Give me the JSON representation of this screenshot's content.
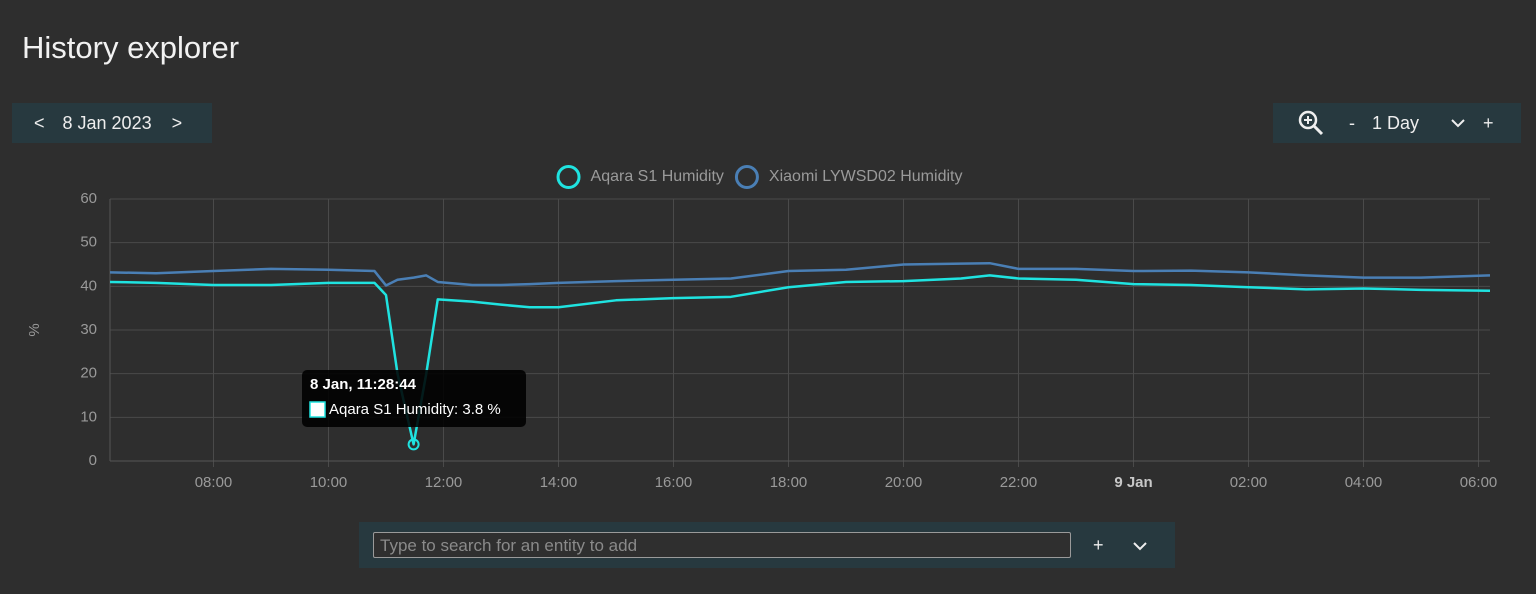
{
  "ui": {
    "title": "History explorer",
    "date_nav": {
      "prev": "<",
      "date": "8 Jan 2023",
      "next": ">"
    },
    "zoom": {
      "minus": "-",
      "range": "1 Day",
      "plus": "+"
    },
    "search": {
      "placeholder": "Type to search for an entity to add",
      "add": "+"
    }
  },
  "chart_data": {
    "type": "line",
    "ylabel": "%",
    "x": [
      6.2,
      7,
      8,
      9,
      10,
      10.8,
      11,
      11.2,
      11.48,
      11.7,
      11.9,
      12.5,
      13,
      13.5,
      14,
      15,
      16,
      17,
      18,
      19,
      20,
      21,
      21.5,
      22,
      23,
      24,
      25,
      26,
      27,
      28,
      29,
      30.2
    ],
    "series": [
      {
        "name": "Aqara S1 Humidity",
        "color": "#1fe3e0",
        "values": [
          41,
          40.8,
          40.3,
          40.3,
          40.8,
          40.8,
          38,
          20,
          3.8,
          20,
          37,
          36.5,
          35.8,
          35.2,
          35.2,
          36.8,
          37.3,
          37.6,
          39.8,
          41,
          41.2,
          41.8,
          42.5,
          41.8,
          41.5,
          40.5,
          40.3,
          39.8,
          39.3,
          39.5,
          39.2,
          39
        ]
      },
      {
        "name": "Xiaomi LYWSD02 Humidity",
        "color": "#4a7fb5",
        "values": [
          43.2,
          43,
          43.5,
          44,
          43.8,
          43.5,
          40.2,
          41.5,
          42,
          42.5,
          41,
          40.3,
          40.3,
          40.5,
          40.8,
          41.2,
          41.5,
          41.8,
          43.5,
          43.8,
          45,
          45.2,
          45.3,
          44,
          44,
          43.5,
          43.6,
          43.2,
          42.5,
          42,
          42,
          42.5
        ]
      }
    ],
    "xlim": [
      6.2,
      30.2
    ],
    "xticks": [
      {
        "value": 8,
        "label": "08:00"
      },
      {
        "value": 10,
        "label": "10:00"
      },
      {
        "value": 12,
        "label": "12:00"
      },
      {
        "value": 14,
        "label": "14:00"
      },
      {
        "value": 16,
        "label": "16:00"
      },
      {
        "value": 18,
        "label": "18:00"
      },
      {
        "value": 20,
        "label": "20:00"
      },
      {
        "value": 22,
        "label": "22:00"
      },
      {
        "value": 24,
        "label": "9 Jan"
      },
      {
        "value": 26,
        "label": "02:00"
      },
      {
        "value": 28,
        "label": "04:00"
      },
      {
        "value": 30,
        "label": "06:00"
      }
    ],
    "ylim": [
      0,
      60
    ],
    "yticks": [
      0,
      10,
      20,
      30,
      40,
      50,
      60
    ],
    "grid": true,
    "tooltip": {
      "title": "8 Jan, 11:28:44",
      "label": "Aqara S1 Humidity: 3.8 %",
      "series": 0,
      "index": 8
    }
  }
}
